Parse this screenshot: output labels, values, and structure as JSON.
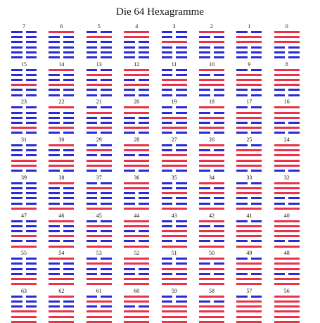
{
  "title": "Die 64 Hexagramme",
  "colors": {
    "yang": "#e8334a",
    "yin": "#2a2ad6"
  },
  "hexagrams": [
    {
      "label": "7",
      "lines": "000000"
    },
    {
      "label": "6",
      "lines": "100000"
    },
    {
      "label": "5",
      "lines": "010000"
    },
    {
      "label": "4",
      "lines": "110000"
    },
    {
      "label": "3",
      "lines": "001000"
    },
    {
      "label": "2",
      "lines": "101000"
    },
    {
      "label": "1",
      "lines": "011000"
    },
    {
      "label": "0",
      "lines": "111000"
    },
    {
      "label": "15",
      "lines": "000100"
    },
    {
      "label": "14",
      "lines": "100100"
    },
    {
      "label": "13",
      "lines": "010100"
    },
    {
      "label": "12",
      "lines": "110100"
    },
    {
      "label": "11",
      "lines": "001100"
    },
    {
      "label": "10",
      "lines": "101100"
    },
    {
      "label": "9",
      "lines": "011100"
    },
    {
      "label": "8",
      "lines": "111100"
    },
    {
      "label": "23",
      "lines": "000010"
    },
    {
      "label": "22",
      "lines": "100010"
    },
    {
      "label": "21",
      "lines": "010010"
    },
    {
      "label": "20",
      "lines": "110010"
    },
    {
      "label": "19",
      "lines": "001010"
    },
    {
      "label": "18",
      "lines": "101010"
    },
    {
      "label": "17",
      "lines": "011010"
    },
    {
      "label": "16",
      "lines": "111010"
    },
    {
      "label": "31",
      "lines": "000110"
    },
    {
      "label": "30",
      "lines": "100110"
    },
    {
      "label": "29",
      "lines": "010110"
    },
    {
      "label": "28",
      "lines": "110110"
    },
    {
      "label": "27",
      "lines": "001110"
    },
    {
      "label": "26",
      "lines": "101110"
    },
    {
      "label": "25",
      "lines": "011110"
    },
    {
      "label": "24",
      "lines": "111110"
    },
    {
      "label": "39",
      "lines": "000001"
    },
    {
      "label": "38",
      "lines": "100001"
    },
    {
      "label": "37",
      "lines": "010001"
    },
    {
      "label": "36",
      "lines": "110001"
    },
    {
      "label": "35",
      "lines": "001001"
    },
    {
      "label": "34",
      "lines": "101001"
    },
    {
      "label": "33",
      "lines": "011001"
    },
    {
      "label": "32",
      "lines": "111001"
    },
    {
      "label": "47",
      "lines": "000101"
    },
    {
      "label": "46",
      "lines": "100101"
    },
    {
      "label": "45",
      "lines": "010101"
    },
    {
      "label": "44",
      "lines": "110101"
    },
    {
      "label": "43",
      "lines": "001101"
    },
    {
      "label": "42",
      "lines": "101101"
    },
    {
      "label": "41",
      "lines": "011101"
    },
    {
      "label": "40",
      "lines": "111101"
    },
    {
      "label": "55",
      "lines": "000011"
    },
    {
      "label": "54",
      "lines": "100011"
    },
    {
      "label": "53",
      "lines": "010011"
    },
    {
      "label": "52",
      "lines": "110011"
    },
    {
      "label": "51",
      "lines": "001011"
    },
    {
      "label": "50",
      "lines": "101011"
    },
    {
      "label": "49",
      "lines": "011011"
    },
    {
      "label": "48",
      "lines": "111011"
    },
    {
      "label": "63",
      "lines": "000111"
    },
    {
      "label": "62",
      "lines": "100111"
    },
    {
      "label": "61",
      "lines": "010111"
    },
    {
      "label": "60",
      "lines": "110111"
    },
    {
      "label": "59",
      "lines": "001111"
    },
    {
      "label": "58",
      "lines": "101111"
    },
    {
      "label": "57",
      "lines": "011111"
    },
    {
      "label": "56",
      "lines": "111111"
    }
  ]
}
